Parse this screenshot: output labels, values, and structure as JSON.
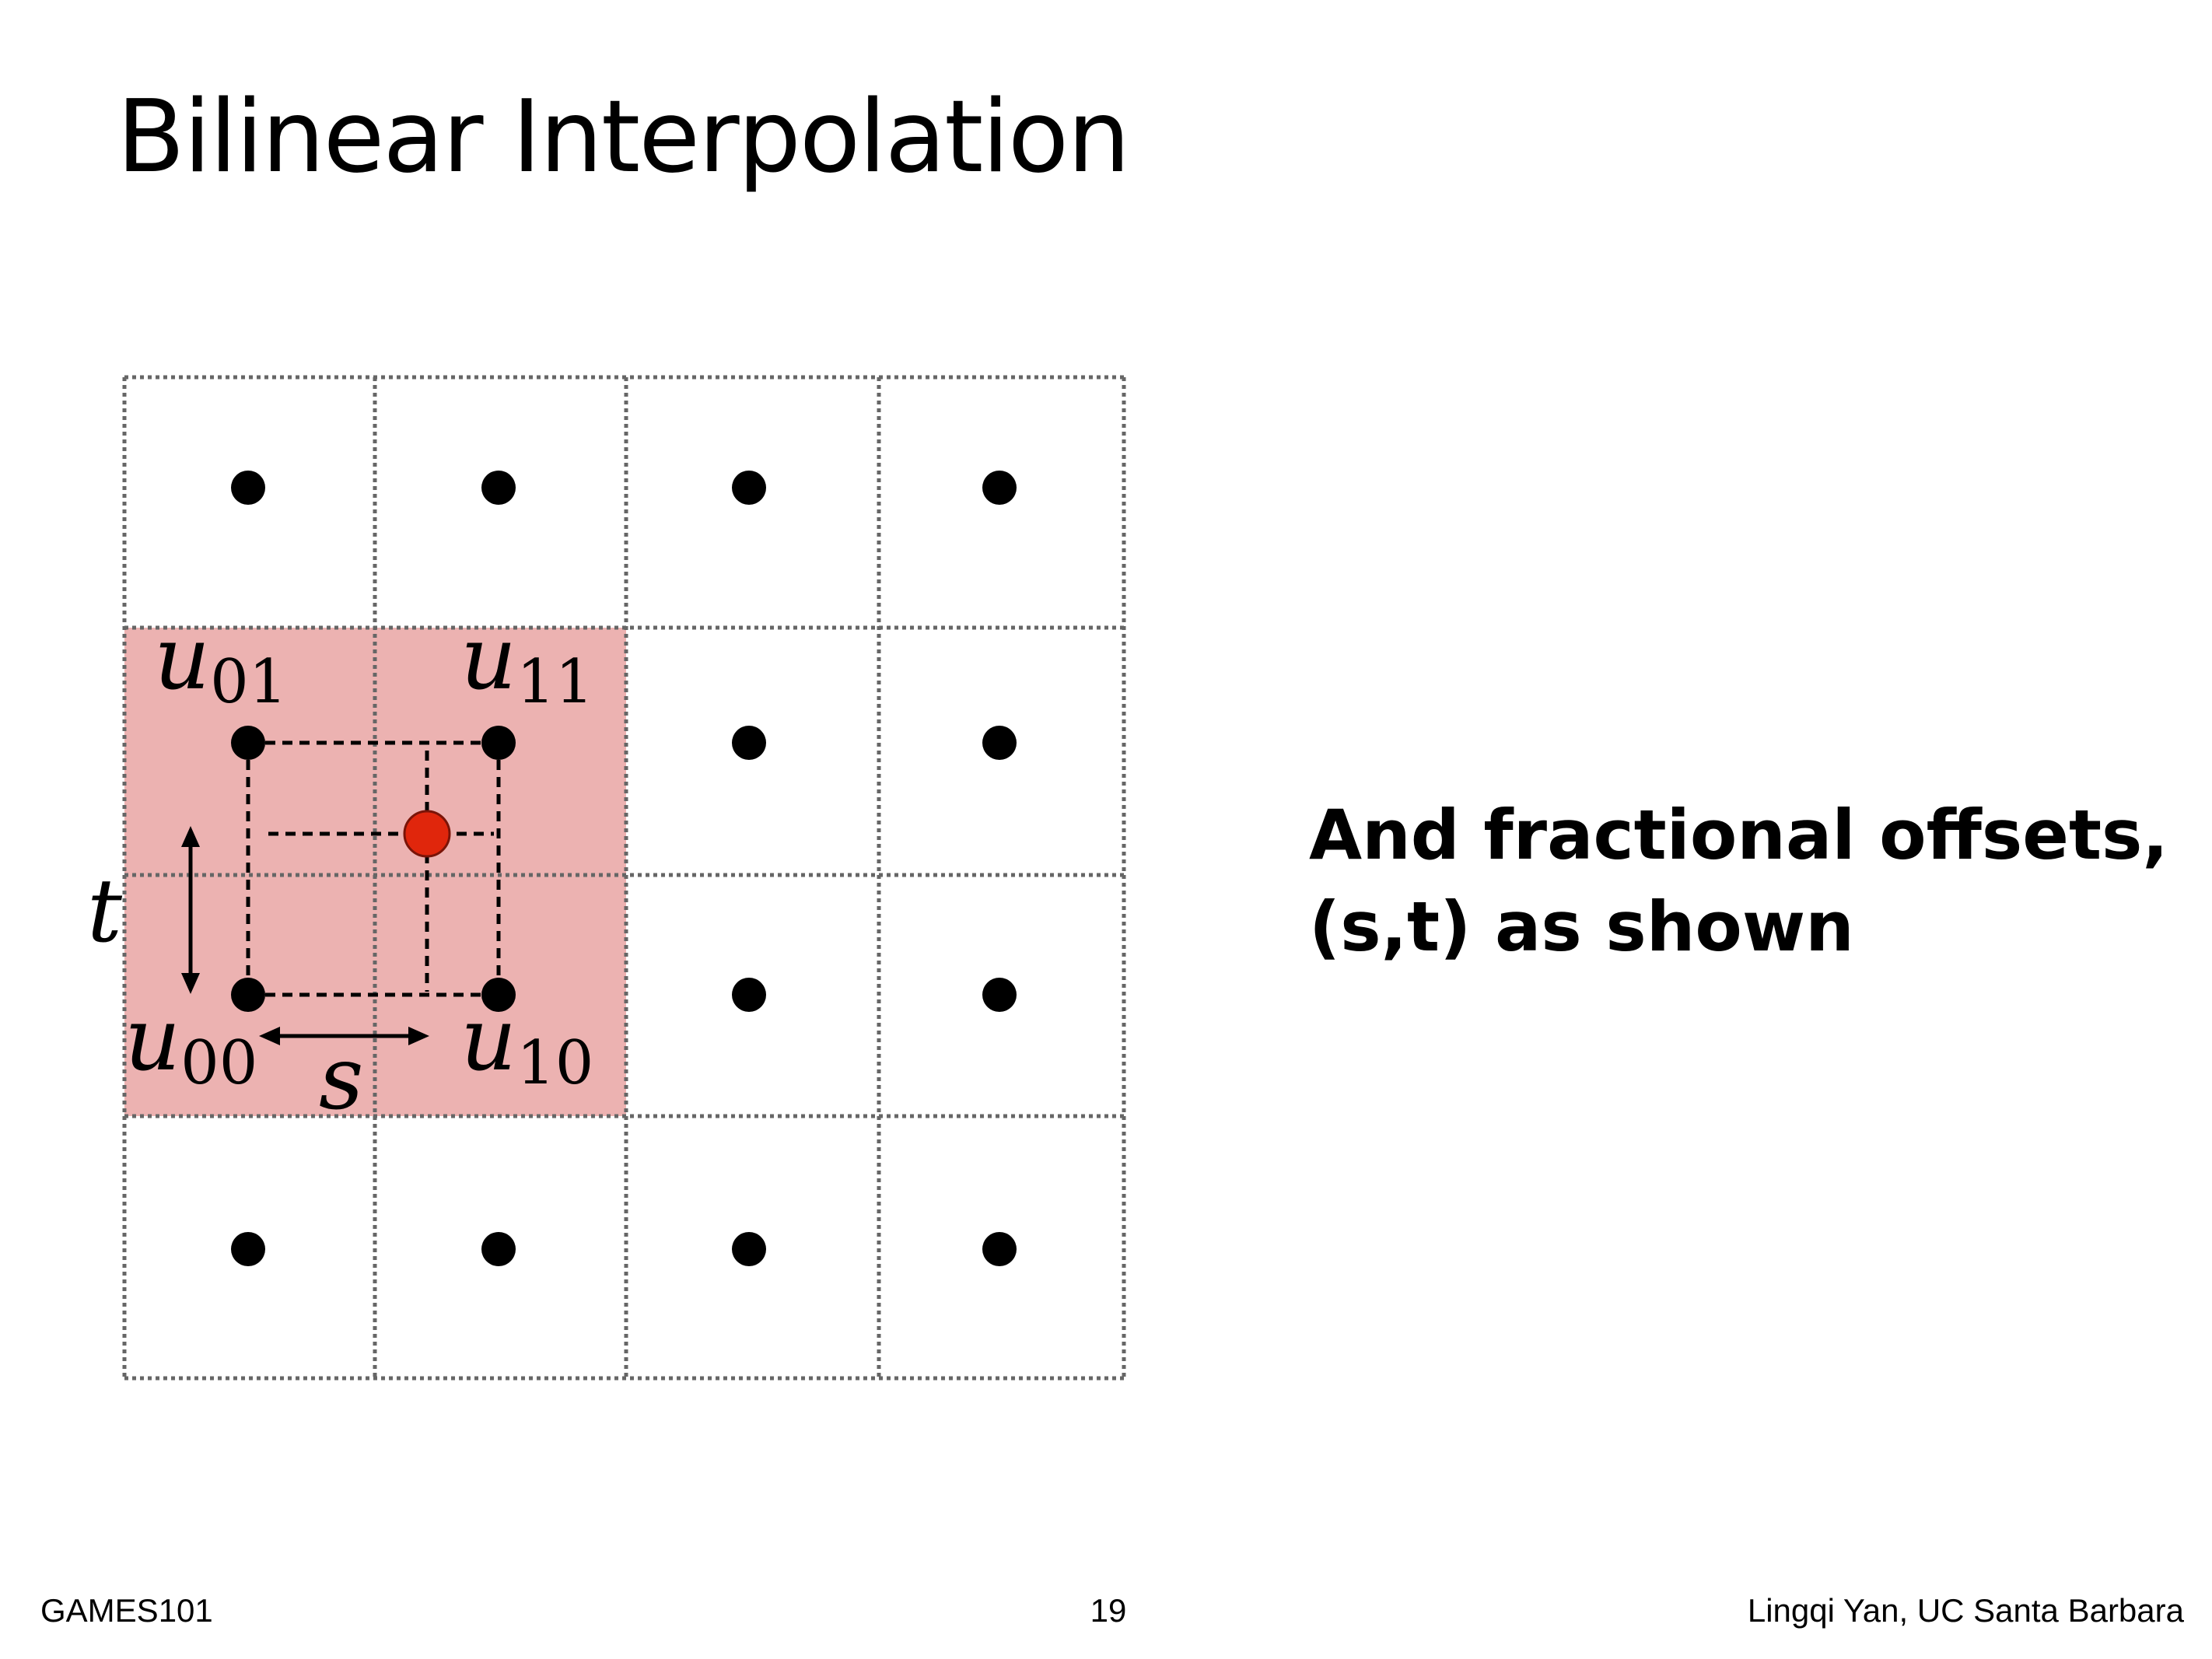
{
  "slide": {
    "title": "Bilinear Interpolation",
    "description_lines": [
      "And fractional offsets,",
      "(s,t) as shown"
    ]
  },
  "footer": {
    "course": "GAMES101",
    "page_number": "19",
    "author": "Lingqi Yan, UC Santa Barbara"
  },
  "diagram": {
    "labels": {
      "u01": {
        "base": "u",
        "sub": "01"
      },
      "u11": {
        "base": "u",
        "sub": "11"
      },
      "u00": {
        "base": "u",
        "sub": "00"
      },
      "u10": {
        "base": "u",
        "sub": "10"
      },
      "s": "s",
      "t": "t"
    },
    "colors": {
      "highlight": "#ecb2b1",
      "sample_point": "#e0260c",
      "grid": "#666666",
      "dot": "#000000"
    }
  }
}
